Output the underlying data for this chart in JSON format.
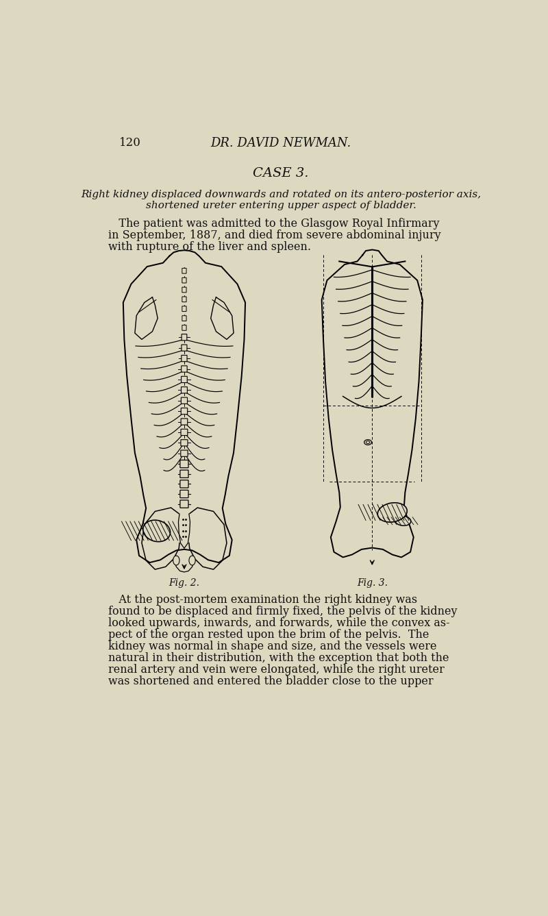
{
  "background_color": "#ddd8c0",
  "page_number": "120",
  "header_title": "DR. DAVID NEWMAN.",
  "case_title": "CASE 3.",
  "subtitle_line1": "Right kidney displaced downwards and rotated on its antero-posterior axis,",
  "subtitle_line2": "shortened ureter entering upper aspect of bladder.",
  "fig2_label": "Fig. 2.",
  "fig3_label": "Fig. 3.",
  "text_color": "#111111",
  "para1_lines": [
    "   The patient was admitted to the Glasgow Royal Infirmary",
    "in September, 1887, and died from severe abdominal injury",
    "with rupture of the liver and spleen."
  ],
  "para2_lines": [
    "   At the post-mortem examination the right kidney was",
    "found to be displaced and firmly fixed, the pelvis of the kidney",
    "looked upwards, inwards, and forwards, while the convex as-",
    "pect of the organ rested upon the brim of the pelvis.  The",
    "kidney was normal in shape and size, and the vessels were",
    "natural in their distribution, with the exception that both the",
    "renal artery and vein were elongated, while the right ureter",
    "was shortened and entered the bladder close to the upper"
  ]
}
